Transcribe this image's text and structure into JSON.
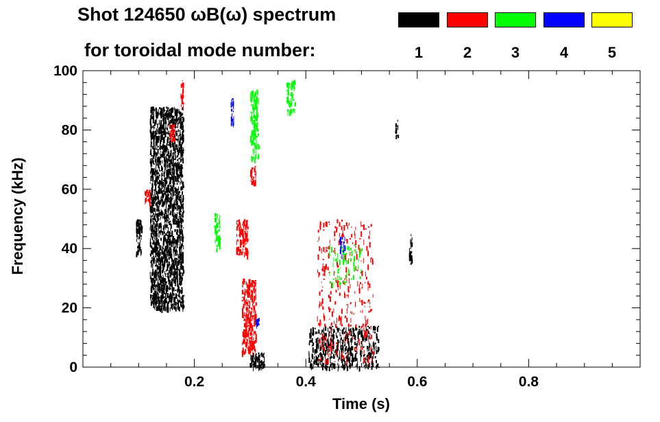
{
  "chart_data": {
    "type": "heatmap",
    "title_line1": "Shot 124650 ωB(ω) spectrum",
    "title_line2": "for toroidal mode number:",
    "xlabel": "Time (s)",
    "ylabel": "Frequency (kHz)",
    "xlim": [
      0.0,
      1.0
    ],
    "ylim": [
      0,
      100
    ],
    "x_ticks": [
      {
        "value": 0.2,
        "label": "0.2"
      },
      {
        "value": 0.4,
        "label": "0.4"
      },
      {
        "value": 0.6,
        "label": "0.6"
      },
      {
        "value": 0.8,
        "label": "0.8"
      }
    ],
    "y_ticks": [
      {
        "value": 0,
        "label": "0"
      },
      {
        "value": 20,
        "label": "20"
      },
      {
        "value": 40,
        "label": "40"
      },
      {
        "value": 60,
        "label": "60"
      },
      {
        "value": 80,
        "label": "80"
      },
      {
        "value": 100,
        "label": "100"
      }
    ],
    "legend": [
      {
        "mode": "1",
        "color": "#000000"
      },
      {
        "mode": "2",
        "color": "#ff0000"
      },
      {
        "mode": "3",
        "color": "#00ff00"
      },
      {
        "mode": "4",
        "color": "#0000ff"
      },
      {
        "mode": "5",
        "color": "#ffff00"
      }
    ],
    "regions": [
      {
        "mode": "1",
        "t": [
          0.12,
          0.18
        ],
        "f": [
          20,
          88
        ],
        "density": 0.9
      },
      {
        "mode": "1",
        "t": [
          0.095,
          0.105
        ],
        "f": [
          38,
          50
        ],
        "density": 0.9
      },
      {
        "mode": "1",
        "t": [
          0.3,
          0.325
        ],
        "f": [
          0,
          5
        ],
        "density": 0.9
      },
      {
        "mode": "1",
        "t": [
          0.405,
          0.53
        ],
        "f": [
          0,
          14
        ],
        "density": 0.5
      },
      {
        "mode": "1",
        "t": [
          0.585,
          0.59
        ],
        "f": [
          35,
          45
        ],
        "density": 0.7
      },
      {
        "mode": "1",
        "t": [
          0.56,
          0.565
        ],
        "f": [
          78,
          84
        ],
        "density": 0.7
      },
      {
        "mode": "2",
        "t": [
          0.285,
          0.31
        ],
        "f": [
          5,
          30
        ],
        "density": 0.8
      },
      {
        "mode": "2",
        "t": [
          0.275,
          0.295
        ],
        "f": [
          38,
          50
        ],
        "density": 0.8
      },
      {
        "mode": "2",
        "t": [
          0.11,
          0.12
        ],
        "f": [
          56,
          60
        ],
        "density": 0.8
      },
      {
        "mode": "2",
        "t": [
          0.155,
          0.165
        ],
        "f": [
          76,
          82
        ],
        "density": 0.8
      },
      {
        "mode": "2",
        "t": [
          0.175,
          0.18
        ],
        "f": [
          88,
          97
        ],
        "density": 0.8
      },
      {
        "mode": "2",
        "t": [
          0.3,
          0.31
        ],
        "f": [
          62,
          68
        ],
        "density": 0.8
      },
      {
        "mode": "2",
        "t": [
          0.42,
          0.52
        ],
        "f": [
          2,
          50
        ],
        "density": 0.12
      },
      {
        "mode": "3",
        "t": [
          0.3,
          0.315
        ],
        "f": [
          70,
          94
        ],
        "density": 0.75
      },
      {
        "mode": "3",
        "t": [
          0.235,
          0.245
        ],
        "f": [
          40,
          52
        ],
        "density": 0.8
      },
      {
        "mode": "3",
        "t": [
          0.365,
          0.38
        ],
        "f": [
          86,
          97
        ],
        "density": 0.8
      },
      {
        "mode": "3",
        "t": [
          0.44,
          0.5
        ],
        "f": [
          28,
          42
        ],
        "density": 0.15
      },
      {
        "mode": "4",
        "t": [
          0.265,
          0.27
        ],
        "f": [
          82,
          91
        ],
        "density": 0.8
      },
      {
        "mode": "4",
        "t": [
          0.31,
          0.315
        ],
        "f": [
          14,
          17
        ],
        "density": 0.9
      },
      {
        "mode": "4",
        "t": [
          0.46,
          0.47
        ],
        "f": [
          38,
          44
        ],
        "density": 0.4
      }
    ]
  }
}
